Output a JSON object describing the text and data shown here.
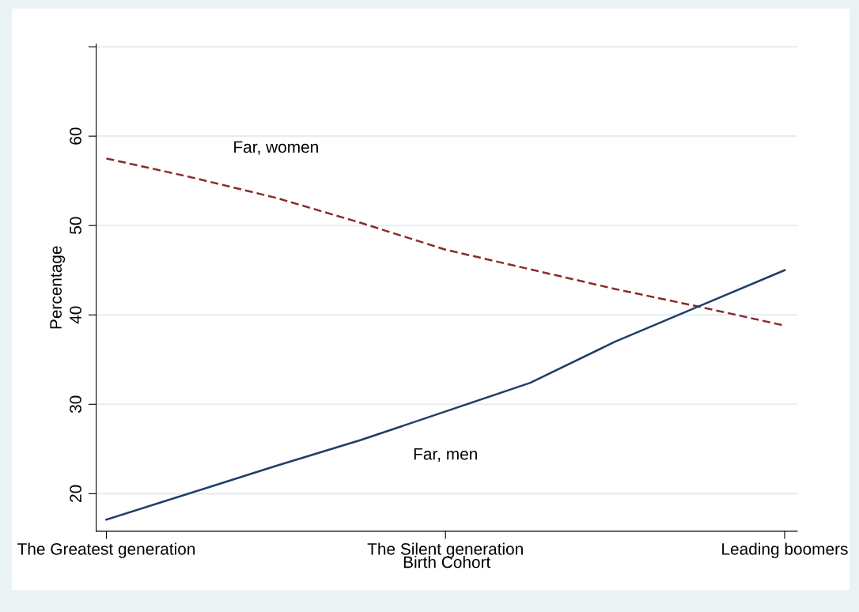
{
  "chart_data": {
    "type": "line",
    "xlabel": "Birth Cohort",
    "ylabel": "Percentage",
    "categories": [
      "The Greatest generation",
      null,
      null,
      null,
      "The Silent generation",
      null,
      null,
      null,
      "Leading boomers"
    ],
    "ylim": [
      15.8,
      70.3
    ],
    "yticks": [
      20,
      30,
      40,
      50,
      60,
      {
        "value": 70,
        "label": null
      }
    ],
    "grid": "y",
    "legend": false,
    "series": [
      {
        "name": "Far, women",
        "color": "#8b2b2b",
        "line_style": "dashed",
        "values": [
          57.5,
          55.4,
          53.1,
          50.3,
          47.3,
          45.1,
          42.9,
          40.9,
          38.8
        ]
      },
      {
        "name": "Far, men",
        "color": "#1f3f66",
        "line_style": "solid",
        "values": [
          17.1,
          20.1,
          23.1,
          26.0,
          29.2,
          32.4,
          37.0,
          41.0,
          45.0
        ]
      }
    ]
  }
}
